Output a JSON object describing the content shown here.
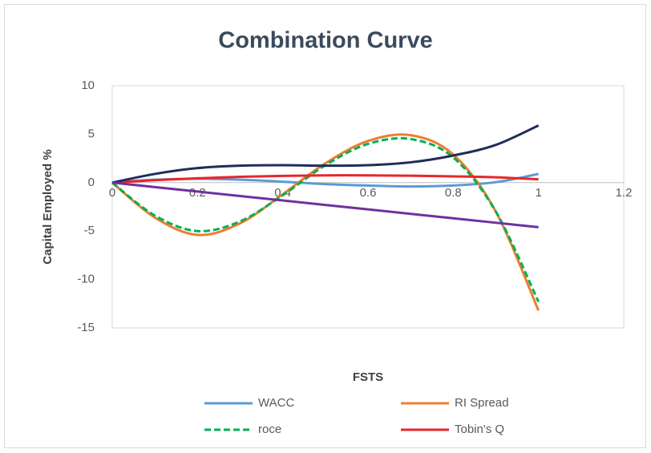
{
  "chart_data": {
    "type": "scatter_smooth",
    "title": "Combination Curve",
    "x_label": "FSTS",
    "y_label": "Capital Employed %",
    "x": [
      0,
      0.1,
      0.2,
      0.3,
      0.4,
      0.5,
      0.6,
      0.7,
      0.8,
      0.9,
      1.0
    ],
    "series": [
      {
        "name": "WACC",
        "color": "#5b9bd5",
        "values": [
          0,
          0.3,
          0.4,
          0.3,
          0.1,
          -0.15,
          -0.3,
          -0.4,
          -0.3,
          0.05,
          0.9
        ]
      },
      {
        "name": "RI Spread",
        "color": "#ed7d31",
        "values": [
          0,
          -3.6,
          -5.4,
          -4.2,
          -1.2,
          2.0,
          4.3,
          4.9,
          2.9,
          -3.0,
          -13.2
        ]
      },
      {
        "name": "roce",
        "color": "#00b050",
        "dash": true,
        "values": [
          0,
          -3.4,
          -5.0,
          -4.0,
          -1.3,
          1.8,
          4.0,
          4.5,
          2.6,
          -3.0,
          -12.3
        ]
      },
      {
        "name": "Tobin's Q",
        "color": "#e8262b",
        "values": [
          0,
          0.25,
          0.45,
          0.6,
          0.7,
          0.75,
          0.75,
          0.72,
          0.65,
          0.55,
          0.35
        ]
      },
      {
        "color": "#1f2d5a",
        "values": [
          0,
          0.9,
          1.5,
          1.75,
          1.8,
          1.75,
          1.8,
          2.1,
          2.8,
          3.9,
          5.9
        ]
      },
      {
        "color": "#7030a0",
        "values": [
          0,
          -0.46,
          -0.92,
          -1.38,
          -1.84,
          -2.3,
          -2.76,
          -3.22,
          -3.68,
          -4.14,
          -4.6
        ]
      }
    ],
    "xlim": [
      0,
      1.2
    ],
    "xticks": [
      0,
      0.2,
      0.4,
      0.6,
      0.8,
      1,
      1.2
    ],
    "ylim": [
      -15,
      10
    ],
    "yticks": [
      -15,
      -10,
      -5,
      0,
      5,
      10
    ],
    "grid": false,
    "legend": "bottom"
  }
}
